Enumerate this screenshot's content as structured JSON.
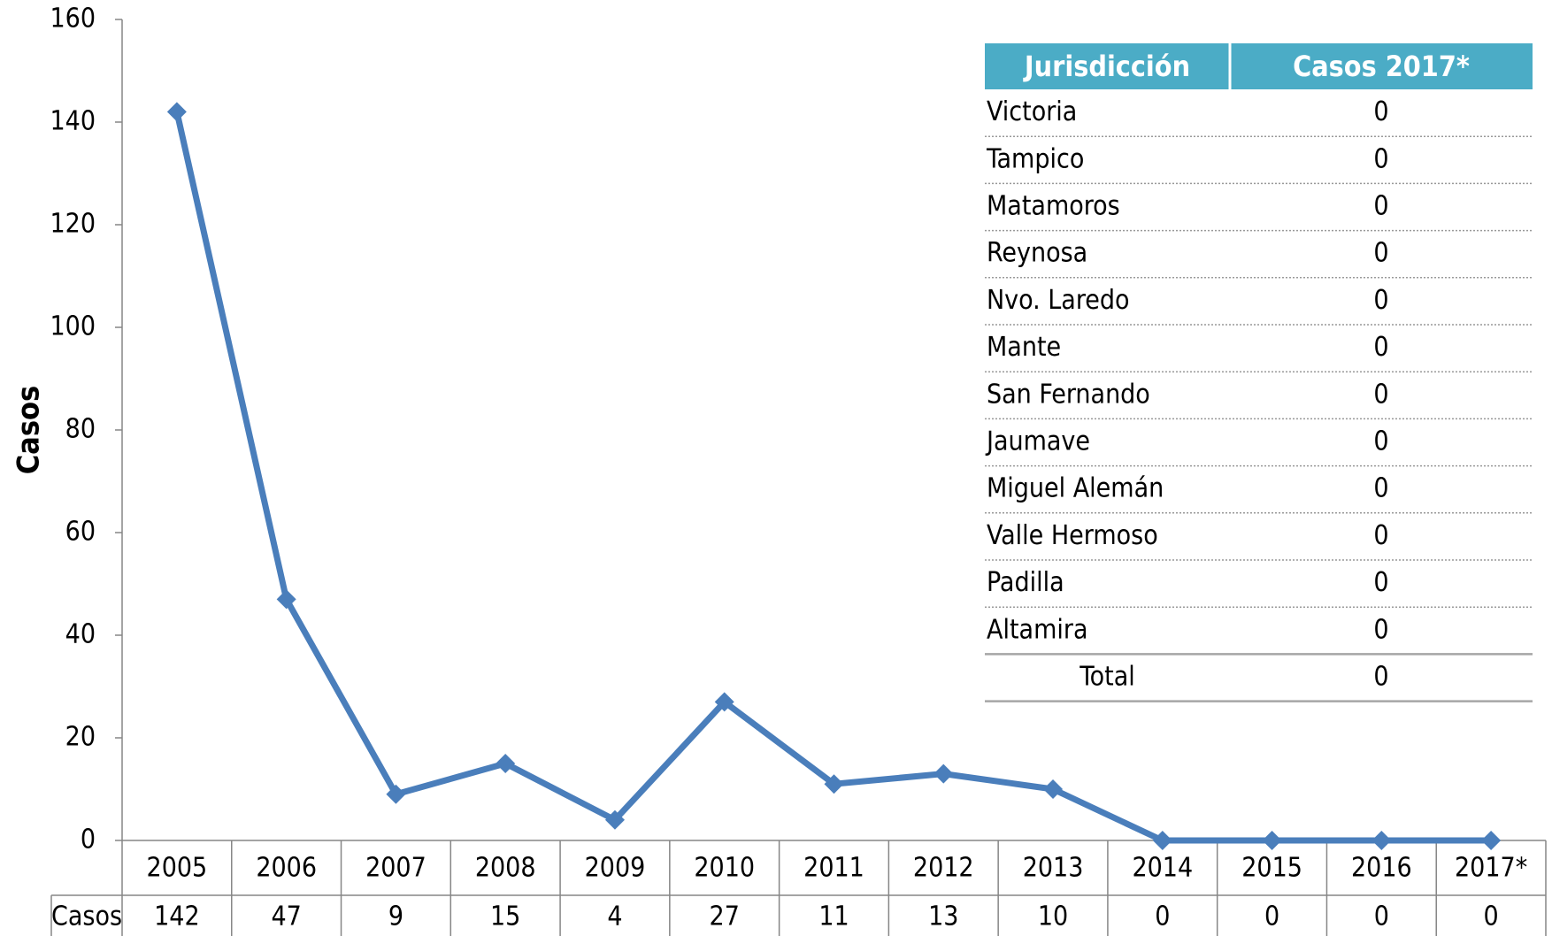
{
  "chart_data": {
    "type": "line",
    "y_label": "Casos",
    "categories": [
      "2005",
      "2006",
      "2007",
      "2008",
      "2009",
      "2010",
      "2011",
      "2012",
      "2013",
      "2014",
      "2015",
      "2016",
      "2017*"
    ],
    "series": [
      {
        "name": "Casos",
        "color": "#4a7ebb",
        "values": [
          142,
          47,
          9,
          15,
          4,
          27,
          11,
          13,
          10,
          0,
          0,
          0,
          0
        ]
      }
    ],
    "ylim": [
      0,
      160
    ],
    "yticks": [
      0,
      20,
      40,
      60,
      80,
      100,
      120,
      140,
      160
    ]
  },
  "table": {
    "headers": [
      "Jurisdicción",
      "Casos 2017*"
    ],
    "rows": [
      [
        "Victoria",
        0
      ],
      [
        "Tampico",
        0
      ],
      [
        "Matamoros",
        0
      ],
      [
        "Reynosa",
        0
      ],
      [
        "Nvo. Laredo",
        0
      ],
      [
        "Mante",
        0
      ],
      [
        "San Fernando",
        0
      ],
      [
        "Jaumave",
        0
      ],
      [
        "Miguel Alemán",
        0
      ],
      [
        "Valle Hermoso",
        0
      ],
      [
        "Padilla",
        0
      ],
      [
        "Altamira",
        0
      ]
    ],
    "total": [
      "Total",
      0
    ]
  }
}
